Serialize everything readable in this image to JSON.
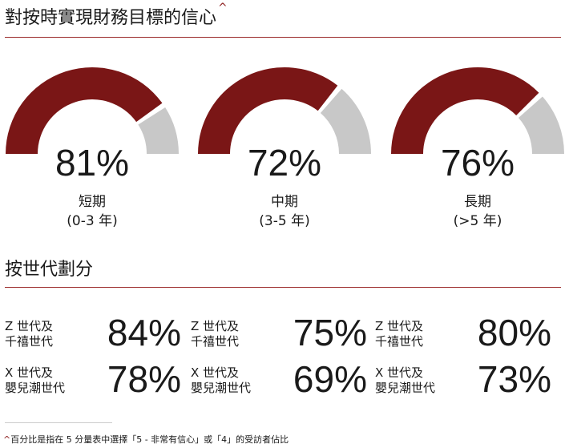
{
  "header": {
    "title": "對按時實現財務目標的信心",
    "title_mark": "^"
  },
  "colors": {
    "accent": "#7a1616",
    "track": "#c8c8c8",
    "rule": "#9b2a2a"
  },
  "chart_data": [
    {
      "type": "gauge",
      "gauges": [
        {
          "value": 81,
          "label": "81%",
          "name": "短期",
          "sub": "(0-3 年)"
        },
        {
          "value": 72,
          "label": "72%",
          "name": "中期",
          "sub": "(3-5 年)"
        },
        {
          "value": 76,
          "label": "76%",
          "name": "長期",
          "sub": "(>5 年)"
        }
      ]
    },
    {
      "type": "table",
      "title": "按世代劃分",
      "rows": [
        {
          "group_line1": "Z 世代及",
          "group_line2": "千禧世代",
          "values": [
            "84%",
            "75%",
            "80%"
          ]
        },
        {
          "group_line1": "X 世代及",
          "group_line2": "嬰兒潮世代",
          "values": [
            "78%",
            "69%",
            "73%"
          ]
        }
      ]
    }
  ],
  "footnote": {
    "mark": "^",
    "text": "百分比是指在 5 分量表中選擇「5 - 非常有信心」或「4」的受訪者佔比"
  }
}
